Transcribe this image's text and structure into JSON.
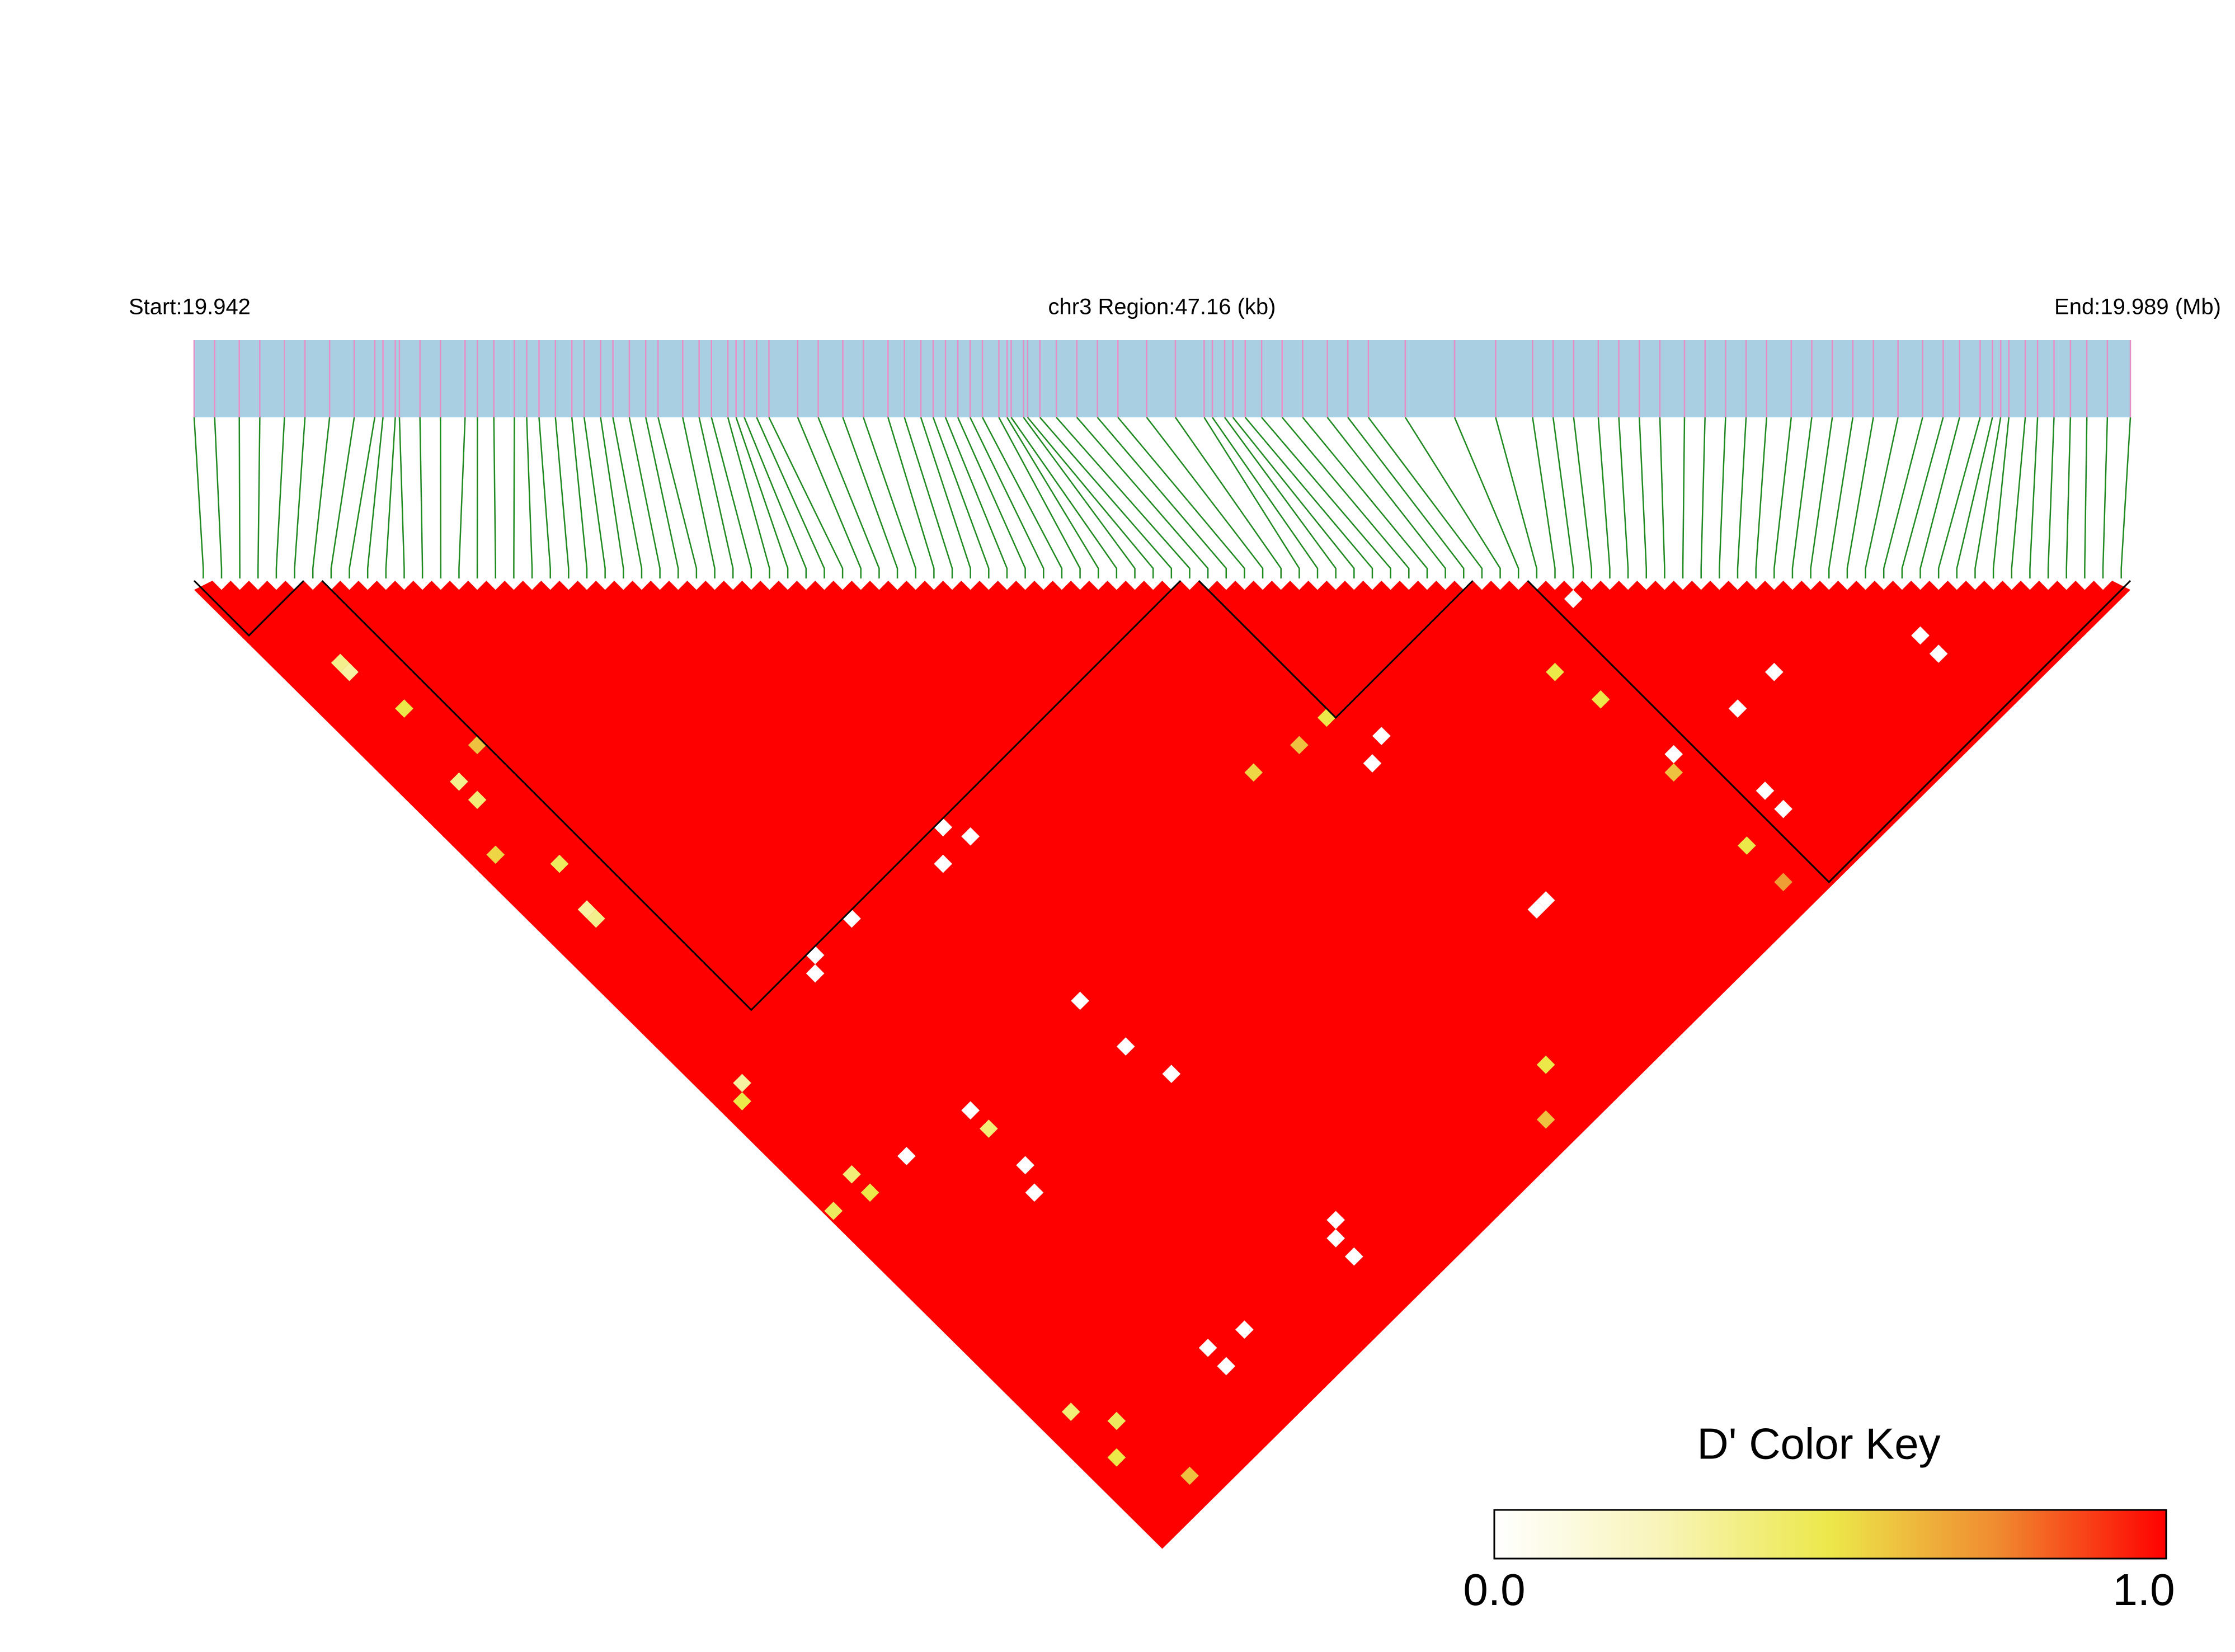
{
  "chart_data": {
    "type": "ld-heatmap",
    "start_label": "Start:19.942",
    "region_label": "chr3 Region:47.16 (kb)",
    "end_label": "End:19.989 (Mb)",
    "xlim": [
      19.942,
      19.98916
    ],
    "snp_positions": [
      19.942,
      19.9425,
      19.9431,
      19.9436,
      19.9442,
      19.9447,
      19.9453,
      19.9459,
      19.9464,
      19.9466,
      19.9469,
      19.947,
      19.9475,
      19.948,
      19.9486,
      19.9489,
      19.9493,
      19.9498,
      19.9501,
      19.9504,
      19.9508,
      19.9512,
      19.9515,
      19.9519,
      19.9522,
      19.9526,
      19.953,
      19.9533,
      19.9539,
      19.9543,
      19.9546,
      19.955,
      19.9552,
      19.9554,
      19.9557,
      19.956,
      19.9567,
      19.9572,
      19.9578,
      19.9583,
      19.9589,
      19.9593,
      19.9597,
      19.96,
      19.9603,
      19.9606,
      19.9609,
      19.9612,
      19.9616,
      19.9618,
      19.9619,
      19.9622,
      19.9623,
      19.9626,
      19.963,
      19.9635,
      19.964,
      19.9645,
      19.9652,
      19.9659,
      19.9666,
      19.9668,
      19.9671,
      19.9673,
      19.9676,
      19.968,
      19.9685,
      19.969,
      19.9696,
      19.9701,
      19.9706,
      19.9715,
      19.9727,
      19.9737,
      19.9746,
      19.9751,
      19.9756,
      19.9762,
      19.9767,
      19.9772,
      19.9777,
      19.9783,
      19.9788,
      19.9793,
      19.9798,
      19.9803,
      19.9809,
      19.9814,
      19.9819,
      19.9824,
      19.9829,
      19.9835,
      19.9841,
      19.9846,
      19.985,
      19.9855,
      19.9858,
      19.986,
      19.9862,
      19.9866,
      19.9869,
      19.9873,
      19.9877,
      19.9881,
      19.9886,
      19.98916
    ],
    "bar_color": "#a8cfe2",
    "snp_line_color": "#e58fc6",
    "connector_color": "#1f8a1f",
    "block_color": "#000000",
    "blocks": [
      [
        0,
        5
      ],
      [
        7,
        53
      ],
      [
        55,
        69
      ],
      [
        73,
        105
      ]
    ],
    "cells": [
      {
        "i": 3,
        "j": 12,
        "value": 0.35
      },
      {
        "i": 3,
        "j": 13,
        "value": 0.3
      },
      {
        "i": 3,
        "j": 25,
        "value": 0.35
      },
      {
        "i": 3,
        "j": 27,
        "value": 0.4
      },
      {
        "i": 3,
        "j": 39,
        "value": 0.3
      },
      {
        "i": 3,
        "j": 40,
        "value": 0.35
      },
      {
        "i": 2,
        "j": 57,
        "value": 0.3
      },
      {
        "i": 1,
        "j": 58,
        "value": 0.5
      },
      {
        "i": 6,
        "j": 24,
        "value": 0.6
      },
      {
        "i": 4,
        "j": 18,
        "value": 0.5
      },
      {
        "i": 1,
        "j": 31,
        "value": 0.55
      },
      {
        "i": 4,
        "j": 35,
        "value": 0.45
      },
      {
        "i": 3,
        "j": 68,
        "value": 0.4
      },
      {
        "i": 3,
        "j": 70,
        "value": 0.5
      },
      {
        "i": 0,
        "j": 69,
        "value": 0.45
      },
      {
        "i": 13,
        "j": 73,
        "value": 0.4
      },
      {
        "i": 2,
        "j": 93,
        "value": 0.4
      },
      {
        "i": 4,
        "j": 96,
        "value": 0.45
      },
      {
        "i": 2,
        "j": 98,
        "value": 0.5
      },
      {
        "i": 5,
        "j": 103,
        "value": 0.6
      },
      {
        "i": 47,
        "j": 68,
        "value": 0.55
      },
      {
        "i": 54,
        "j": 69,
        "value": 0.5
      },
      {
        "i": 51,
        "j": 69,
        "value": 0.6
      },
      {
        "i": 47,
        "j": 100,
        "value": 0.5
      },
      {
        "i": 44,
        "j": 103,
        "value": 0.6
      },
      {
        "i": 69,
        "j": 79,
        "value": 0.5
      },
      {
        "i": 70,
        "j": 83,
        "value": 0.5
      },
      {
        "i": 70,
        "j": 91,
        "value": 0.6
      },
      {
        "i": 70,
        "j": 99,
        "value": 0.5
      },
      {
        "i": 70,
        "j": 103,
        "value": 0.7
      },
      {
        "i": 27,
        "j": 54,
        "value": 0
      },
      {
        "i": 25,
        "j": 56,
        "value": 0
      },
      {
        "i": 28,
        "j": 56,
        "value": 0
      },
      {
        "i": 17,
        "j": 54,
        "value": 0
      },
      {
        "i": 13,
        "j": 54,
        "value": 0
      },
      {
        "i": 12,
        "j": 55,
        "value": 0
      },
      {
        "i": 25,
        "j": 71,
        "value": 0
      },
      {
        "i": 25,
        "j": 76,
        "value": 0
      },
      {
        "i": 26,
        "j": 80,
        "value": 0
      },
      {
        "i": 13,
        "j": 71,
        "value": 0
      },
      {
        "i": 13,
        "j": 77,
        "value": 0
      },
      {
        "i": 12,
        "j": 79,
        "value": 0
      },
      {
        "i": 7,
        "j": 70,
        "value": 0
      },
      {
        "i": 26,
        "j": 98,
        "value": 0
      },
      {
        "i": 26,
        "j": 100,
        "value": 0
      },
      {
        "i": 27,
        "j": 97,
        "value": 0
      },
      {
        "i": 13,
        "j": 97,
        "value": 0
      },
      {
        "i": 13,
        "j": 99,
        "value": 0
      },
      {
        "i": 16,
        "j": 98,
        "value": 0
      },
      {
        "i": 55,
        "j": 91,
        "value": 0
      },
      {
        "i": 56,
        "j": 91,
        "value": 0
      },
      {
        "i": 54,
        "j": 74,
        "value": 0
      },
      {
        "i": 56,
        "j": 73,
        "value": 0
      },
      {
        "i": 81,
        "j": 91,
        "value": 0
      },
      {
        "i": 77,
        "j": 91,
        "value": 0
      },
      {
        "i": 71,
        "j": 90,
        "value": 0
      },
      {
        "i": 74,
        "j": 97,
        "value": 0
      },
      {
        "i": 74,
        "j": 99,
        "value": 0
      },
      {
        "i": 74,
        "j": 76,
        "value": 0
      },
      {
        "i": 91,
        "j": 99,
        "value": 0
      },
      {
        "i": 91,
        "j": 97,
        "value": 0
      }
    ],
    "key_title": "D' Color Key",
    "key_colors": [
      "#ffffff",
      "#f8f4b8",
      "#ece84a",
      "#f08a30",
      "#ff0000"
    ],
    "key_lim": [
      0,
      1
    ],
    "key_ticks": [
      {
        "value": 0,
        "label": "0.0"
      },
      {
        "value": 1,
        "label": "1.0"
      }
    ]
  }
}
